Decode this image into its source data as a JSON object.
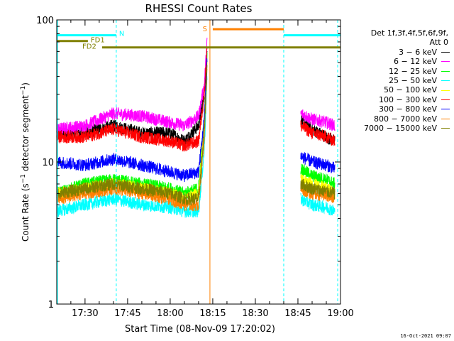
{
  "chart_data": {
    "type": "line",
    "title": "RHESSI Count Rates",
    "xlabel": "Start Time (08-Nov-09 17:20:02)",
    "ylabel": "Count Rate (s⁻¹ detector segment⁻¹)",
    "ylabel_main": "Count Rate (s",
    "ylabel_sup1": "−1",
    "ylabel_mid": " detector segment",
    "ylabel_sup2": "−1",
    "ylabel_end": ")",
    "yscale": "log",
    "ylim": [
      1,
      100
    ],
    "xlim": [
      "17:20:02",
      "19:00:00"
    ],
    "x_ticks": [
      "17:30",
      "17:45",
      "18:00",
      "18:15",
      "18:30",
      "18:45",
      "19:00"
    ],
    "y_ticks": [
      "1",
      "10",
      "100"
    ],
    "grid": false,
    "legend": {
      "placement": "right",
      "header": [
        "Det 1f,3f,4f,5f,6f,9f,",
        "Att 0"
      ],
      "entries": [
        {
          "label": "3 − 6 keV",
          "color": "#000000"
        },
        {
          "label": "6 − 12 keV",
          "color": "#ff00ff"
        },
        {
          "label": "12 − 25 keV",
          "color": "#00ff00"
        },
        {
          "label": "25 − 50 keV",
          "color": "#00ffff"
        },
        {
          "label": "50 − 100 keV",
          "color": "#ffff00"
        },
        {
          "label": "100 − 300 keV",
          "color": "#ff0000"
        },
        {
          "label": "300 − 800 keV",
          "color": "#0000ff"
        },
        {
          "label": "800 − 7000 keV",
          "color": "#ff8000"
        },
        {
          "label": "7000 − 15000 keV",
          "color": "#808000"
        }
      ]
    },
    "series": [
      {
        "name": "3 − 6 keV",
        "color": "#000000",
        "segments": [
          {
            "x": [
              "17:20",
              "17:30",
              "17:40",
              "17:50",
              "18:00",
              "18:05",
              "18:10",
              "18:12",
              "18:13"
            ],
            "y": [
              16,
              16,
              18,
              16,
              16,
              14,
              18,
              30,
              60
            ]
          },
          {
            "x": [
              "18:46",
              "18:50",
              "18:55",
              "18:58"
            ],
            "y": [
              20,
              17,
              15,
              14
            ]
          }
        ]
      },
      {
        "name": "6 − 12 keV",
        "color": "#ff00ff",
        "segments": [
          {
            "x": [
              "17:20",
              "17:30",
              "17:40",
              "17:50",
              "18:00",
              "18:05",
              "18:10",
              "18:12",
              "18:13"
            ],
            "y": [
              17,
              18,
              22,
              21,
              19,
              18,
              21,
              35,
              70
            ]
          },
          {
            "x": [
              "18:46",
              "18:50",
              "18:55",
              "18:58"
            ],
            "y": [
              22,
              20,
              19,
              18
            ]
          }
        ]
      },
      {
        "name": "12 − 25 keV",
        "color": "#00ff00",
        "segments": [
          {
            "x": [
              "17:20",
              "17:30",
              "17:40",
              "17:50",
              "18:00",
              "18:05",
              "18:10",
              "18:12",
              "18:13"
            ],
            "y": [
              6,
              7,
              7.5,
              7,
              6.5,
              6,
              6.5,
              20,
              55
            ]
          },
          {
            "x": [
              "18:46",
              "18:50",
              "18:55",
              "18:58"
            ],
            "y": [
              9,
              8,
              7.5,
              7
            ]
          }
        ]
      },
      {
        "name": "25 − 50 keV",
        "color": "#00ffff",
        "segments": [
          {
            "x": [
              "17:20",
              "17:30",
              "17:40",
              "17:50",
              "18:00",
              "18:05",
              "18:10",
              "18:12",
              "18:13"
            ],
            "y": [
              4.5,
              5,
              5.5,
              5,
              4.8,
              4.5,
              4.5,
              12,
              40
            ]
          },
          {
            "x": [
              "18:46",
              "18:50",
              "18:55",
              "18:58"
            ],
            "y": [
              5.5,
              5,
              4.8,
              4.5
            ]
          }
        ]
      },
      {
        "name": "50 − 100 keV",
        "color": "#ffff00",
        "segments": [
          {
            "x": [
              "17:20",
              "17:30",
              "17:40",
              "17:50",
              "18:00",
              "18:05",
              "18:10",
              "18:12",
              "18:13"
            ],
            "y": [
              6,
              6.5,
              7,
              6.5,
              6,
              5.5,
              6,
              18,
              50
            ]
          },
          {
            "x": [
              "18:46",
              "18:50",
              "18:55",
              "18:58"
            ],
            "y": [
              7.5,
              7,
              6.5,
              6
            ]
          }
        ]
      },
      {
        "name": "100 − 300 keV",
        "color": "#ff0000",
        "segments": [
          {
            "x": [
              "17:20",
              "17:30",
              "17:40",
              "17:50",
              "18:00",
              "18:05",
              "18:10",
              "18:12",
              "18:13"
            ],
            "y": [
              15,
              15,
              17,
              15,
              14,
              13,
              14,
              30,
              65
            ]
          },
          {
            "x": [
              "18:46",
              "18:50",
              "18:55",
              "18:58"
            ],
            "y": [
              18,
              16,
              15,
              14
            ]
          }
        ]
      },
      {
        "name": "300 − 800 keV",
        "color": "#0000ff",
        "segments": [
          {
            "x": [
              "17:20",
              "17:30",
              "17:40",
              "17:50",
              "18:00",
              "18:05",
              "18:10",
              "18:12",
              "18:13"
            ],
            "y": [
              10,
              9.5,
              10.5,
              9.5,
              8.5,
              8,
              8.5,
              20,
              55
            ]
          },
          {
            "x": [
              "18:46",
              "18:50",
              "18:55",
              "18:58"
            ],
            "y": [
              11,
              10,
              9.5,
              9
            ]
          }
        ]
      },
      {
        "name": "800 − 7000 keV",
        "color": "#ff8000",
        "segments": [
          {
            "x": [
              "17:20",
              "17:30",
              "17:40",
              "17:50",
              "18:00",
              "18:05",
              "18:10",
              "18:12",
              "18:13"
            ],
            "y": [
              5.5,
              6,
              6.5,
              6,
              5.5,
              5,
              5,
              15,
              45
            ]
          },
          {
            "x": [
              "18:46",
              "18:50",
              "18:55",
              "18:58"
            ],
            "y": [
              6.5,
              6,
              5.8,
              5.5
            ]
          }
        ]
      },
      {
        "name": "7000 − 15000 keV",
        "color": "#808000",
        "segments": [
          {
            "x": [
              "17:20",
              "17:30",
              "17:40",
              "17:50",
              "18:00",
              "18:05",
              "18:10",
              "18:12",
              "18:13"
            ],
            "y": [
              6,
              6.5,
              7,
              6.5,
              6,
              5.5,
              5.5,
              16,
              48
            ]
          },
          {
            "x": [
              "18:46",
              "18:50",
              "18:55",
              "18:58"
            ],
            "y": [
              7,
              6.5,
              6.2,
              6
            ]
          }
        ]
      }
    ],
    "annotations": [
      {
        "text": "N",
        "color": "#00ffff"
      },
      {
        "text": "FD1",
        "color": "#808000"
      },
      {
        "text": "FD2",
        "color": "#808000"
      },
      {
        "text": "S",
        "color": "#ff8000"
      }
    ],
    "flags": [
      {
        "label": "N",
        "color": "#00ffff",
        "ranges": [
          [
            "17:20",
            "17:41"
          ],
          [
            "18:40",
            "19:00"
          ]
        ],
        "y": 78
      },
      {
        "label": "FD1",
        "color": "#808000",
        "ranges": [
          [
            "17:20",
            "17:31"
          ]
        ],
        "y": 71
      },
      {
        "label": "FD2",
        "color": "#808000",
        "ranges": [
          [
            "17:36",
            "19:00"
          ]
        ],
        "y": 64
      },
      {
        "label": "S",
        "color": "#ff8000",
        "ranges": [
          [
            "18:15",
            "18:40"
          ]
        ],
        "y": 86
      }
    ],
    "vlines": [
      {
        "x": "17:41",
        "color": "#00ffff",
        "style": "dashed"
      },
      {
        "x": "18:14",
        "color": "#ff8000",
        "style": "solid"
      },
      {
        "x": "18:40",
        "color": "#00ffff",
        "style": "dashed"
      },
      {
        "x": "18:59",
        "color": "#00ffff",
        "style": "dashed"
      }
    ],
    "data_gap": [
      "18:14",
      "18:46"
    ]
  },
  "footer": {
    "date": "16-Oct-2021 09:07"
  }
}
